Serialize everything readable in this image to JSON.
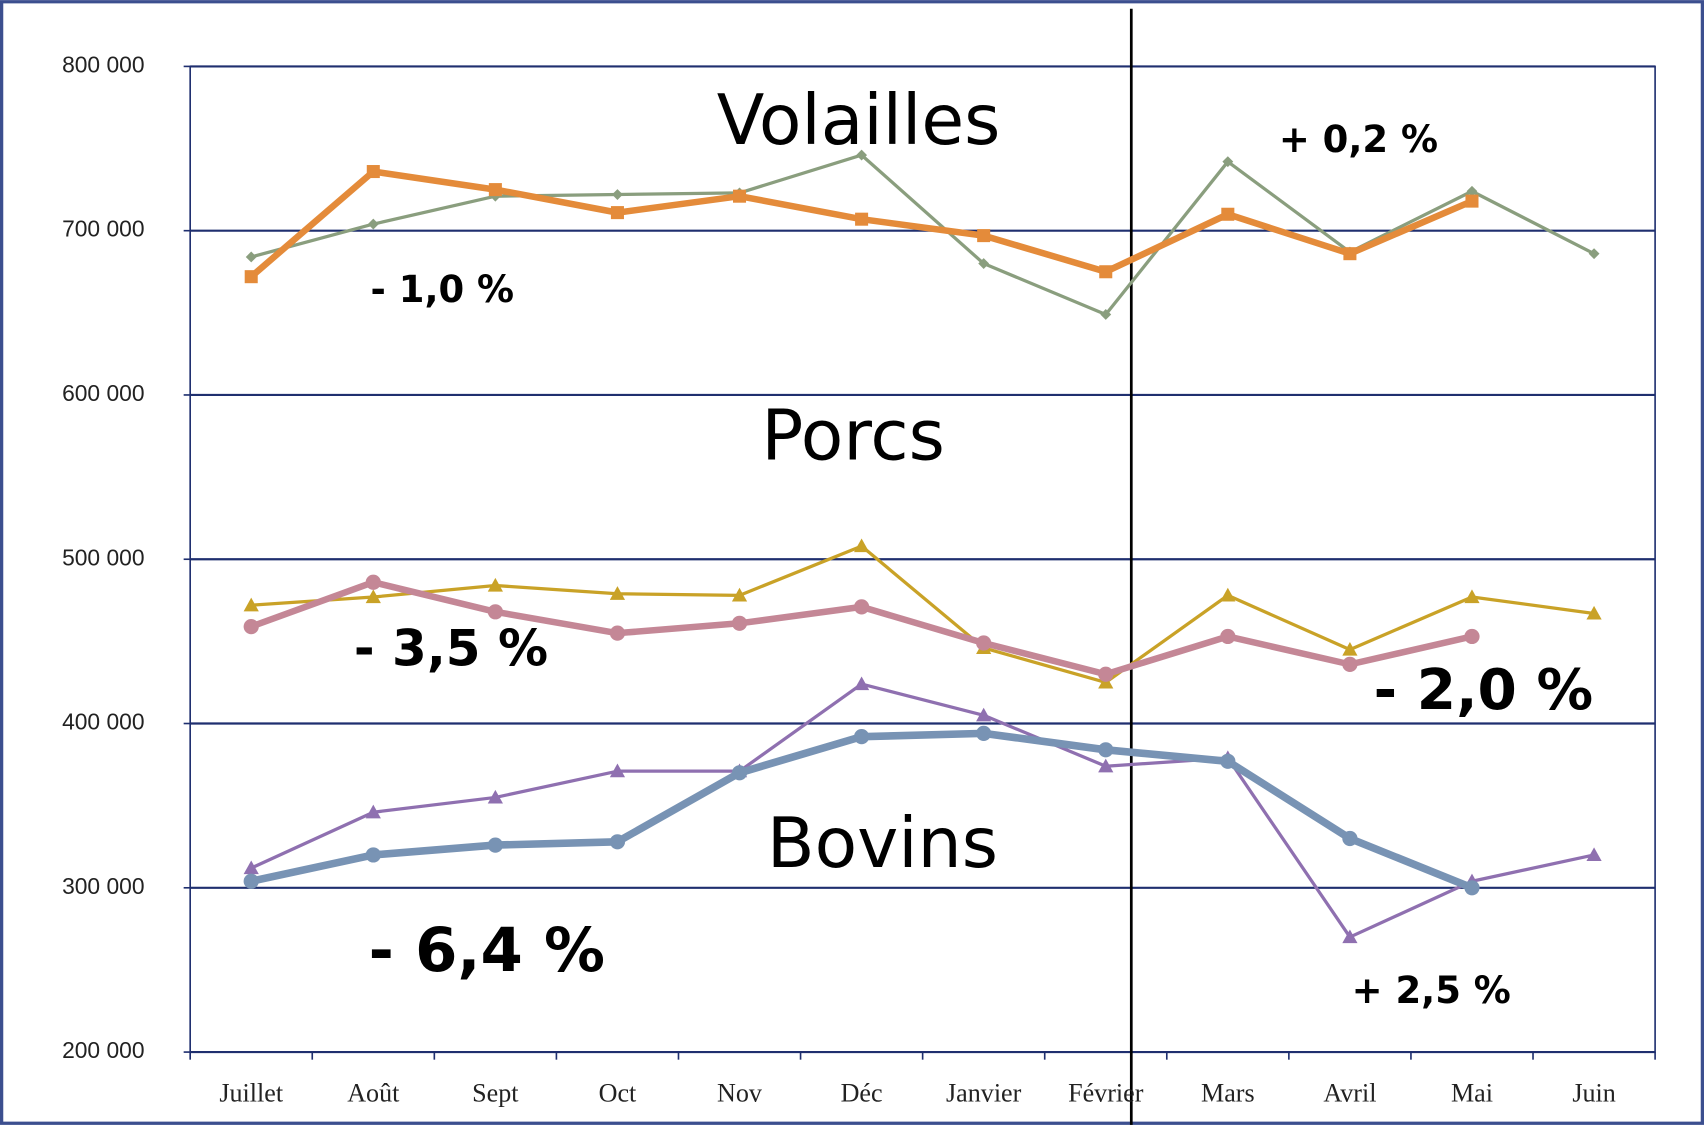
{
  "chart_data": {
    "type": "line",
    "categories": [
      "Juillet",
      "Août",
      "Sept",
      "Oct",
      "Nov",
      "Déc",
      "Janvier",
      "Février",
      "Mars",
      "Avril",
      "Mai",
      "Juin"
    ],
    "series": [
      {
        "color": "#8a9e7e",
        "marker": "diamond",
        "line_width": 3,
        "values": [
          684000,
          704000,
          721000,
          722000,
          723000,
          746000,
          680000,
          649000,
          742000,
          687000,
          724000,
          686000
        ]
      },
      {
        "color": "#e48b3a",
        "marker": "square",
        "line_width": 6,
        "values": [
          672000,
          736000,
          725000,
          711000,
          721000,
          707000,
          697000,
          675000,
          710000,
          686000,
          718000,
          null
        ]
      },
      {
        "color": "#c9a227",
        "marker": "triangle",
        "line_width": 3,
        "values": [
          472000,
          477000,
          484000,
          479000,
          478000,
          508000,
          446000,
          425000,
          478000,
          445000,
          477000,
          467000
        ]
      },
      {
        "color": "#c48796",
        "marker": "circle",
        "line_width": 6,
        "values": [
          459000,
          486000,
          468000,
          455000,
          461000,
          471000,
          449000,
          430000,
          453000,
          436000,
          453000,
          null
        ]
      },
      {
        "color": "#8f70b0",
        "marker": "triangle",
        "line_width": 3,
        "values": [
          312000,
          346000,
          355000,
          371000,
          371000,
          424000,
          405000,
          374000,
          379000,
          270000,
          304000,
          320000
        ]
      },
      {
        "color": "#7893b4",
        "marker": "circle",
        "line_width": 7,
        "values": [
          304000,
          320000,
          326000,
          328000,
          370000,
          392000,
          394000,
          384000,
          377000,
          330000,
          300000,
          null
        ]
      }
    ],
    "annotations": [
      "Volailles",
      "Porcs",
      "Bovins",
      "- 1,0 %",
      "+ 0,2 %",
      "- 3,5 %",
      "- 2,0 %",
      "- 6,4 %",
      "+ 2,5 %"
    ],
    "ylim": [
      200000,
      800000
    ],
    "yticks": [
      {
        "value": 200000,
        "label": "200 000"
      },
      {
        "value": 300000,
        "label": "300 000"
      },
      {
        "value": 400000,
        "label": "400 000"
      },
      {
        "value": 500000,
        "label": "500 000"
      },
      {
        "value": 600000,
        "label": "600 000"
      },
      {
        "value": 700000,
        "label": "700 000"
      },
      {
        "value": 800000,
        "label": "800 000"
      }
    ],
    "grid": true
  }
}
